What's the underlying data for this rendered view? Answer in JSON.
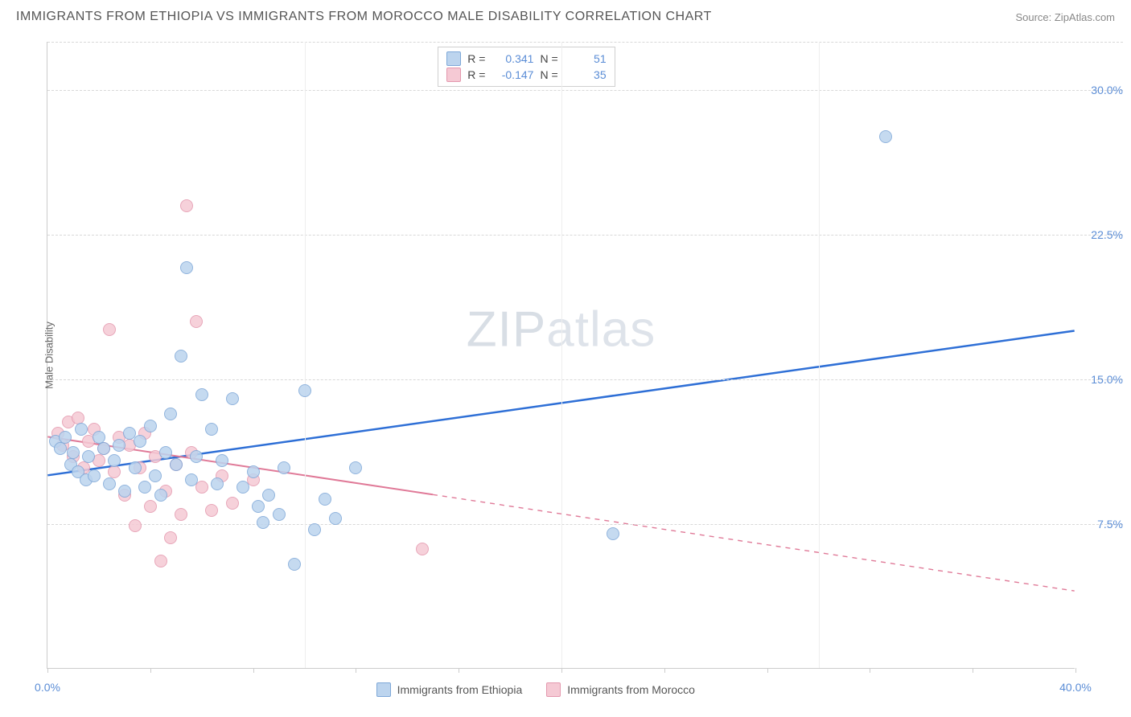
{
  "header": {
    "title": "IMMIGRANTS FROM ETHIOPIA VS IMMIGRANTS FROM MOROCCO MALE DISABILITY CORRELATION CHART",
    "source": "Source: ZipAtlas.com"
  },
  "chart": {
    "type": "scatter",
    "background_color": "#ffffff",
    "grid_color": "#d8d8d8",
    "axis_color": "#cccccc",
    "y_axis_label": "Male Disability",
    "watermark": "ZIPatlas",
    "xlim": [
      0,
      40
    ],
    "ylim": [
      0,
      32.5
    ],
    "xticks": [
      0,
      10,
      20,
      30,
      40
    ],
    "xtick_labels": [
      "0.0%",
      "",
      "",
      "",
      "40.0%"
    ],
    "xtick_minor": [
      0,
      4,
      8,
      12,
      16,
      20,
      24,
      28,
      32,
      36,
      40
    ],
    "yticks": [
      7.5,
      15.0,
      22.5,
      30.0
    ],
    "ytick_labels": [
      "7.5%",
      "15.0%",
      "22.5%",
      "30.0%"
    ],
    "tick_label_color": "#5b8dd6",
    "tick_fontsize": 14,
    "label_fontsize": 13,
    "point_radius": 8,
    "point_border_width": 1.5,
    "series": [
      {
        "name": "Immigrants from Ethiopia",
        "fill": "#bcd4ee",
        "stroke": "#7ea8d8",
        "points": [
          [
            0.3,
            11.8
          ],
          [
            0.5,
            11.4
          ],
          [
            0.7,
            12.0
          ],
          [
            0.9,
            10.6
          ],
          [
            1.0,
            11.2
          ],
          [
            1.2,
            10.2
          ],
          [
            1.3,
            12.4
          ],
          [
            1.5,
            9.8
          ],
          [
            1.6,
            11.0
          ],
          [
            1.8,
            10.0
          ],
          [
            2.0,
            12.0
          ],
          [
            2.2,
            11.4
          ],
          [
            2.4,
            9.6
          ],
          [
            2.6,
            10.8
          ],
          [
            2.8,
            11.6
          ],
          [
            3.0,
            9.2
          ],
          [
            3.2,
            12.2
          ],
          [
            3.4,
            10.4
          ],
          [
            3.6,
            11.8
          ],
          [
            3.8,
            9.4
          ],
          [
            4.0,
            12.6
          ],
          [
            4.2,
            10.0
          ],
          [
            4.4,
            9.0
          ],
          [
            4.6,
            11.2
          ],
          [
            4.8,
            13.2
          ],
          [
            5.0,
            10.6
          ],
          [
            5.2,
            16.2
          ],
          [
            5.4,
            20.8
          ],
          [
            5.6,
            9.8
          ],
          [
            5.8,
            11.0
          ],
          [
            6.0,
            14.2
          ],
          [
            6.4,
            12.4
          ],
          [
            6.6,
            9.6
          ],
          [
            6.8,
            10.8
          ],
          [
            7.2,
            14.0
          ],
          [
            7.6,
            9.4
          ],
          [
            8.0,
            10.2
          ],
          [
            8.2,
            8.4
          ],
          [
            8.4,
            7.6
          ],
          [
            8.6,
            9.0
          ],
          [
            9.0,
            8.0
          ],
          [
            9.2,
            10.4
          ],
          [
            9.6,
            5.4
          ],
          [
            10.0,
            14.4
          ],
          [
            10.4,
            7.2
          ],
          [
            10.8,
            8.8
          ],
          [
            11.2,
            7.8
          ],
          [
            12.0,
            10.4
          ],
          [
            22.0,
            7.0
          ],
          [
            32.6,
            27.6
          ]
        ],
        "trend": {
          "color": "#2e6fd6",
          "width": 2.5,
          "x1": 0,
          "y1": 10.0,
          "x2": 40,
          "y2": 17.5,
          "solid_until": 40
        }
      },
      {
        "name": "Immigrants from Morocco",
        "fill": "#f5c9d4",
        "stroke": "#e498ae",
        "points": [
          [
            0.4,
            12.2
          ],
          [
            0.6,
            11.6
          ],
          [
            0.8,
            12.8
          ],
          [
            1.0,
            11.0
          ],
          [
            1.2,
            13.0
          ],
          [
            1.4,
            10.4
          ],
          [
            1.6,
            11.8
          ],
          [
            1.8,
            12.4
          ],
          [
            2.0,
            10.8
          ],
          [
            2.2,
            11.4
          ],
          [
            2.4,
            17.6
          ],
          [
            2.6,
            10.2
          ],
          [
            2.8,
            12.0
          ],
          [
            3.0,
            9.0
          ],
          [
            3.2,
            11.6
          ],
          [
            3.4,
            7.4
          ],
          [
            3.6,
            10.4
          ],
          [
            3.8,
            12.2
          ],
          [
            4.0,
            8.4
          ],
          [
            4.2,
            11.0
          ],
          [
            4.4,
            5.6
          ],
          [
            4.6,
            9.2
          ],
          [
            4.8,
            6.8
          ],
          [
            5.0,
            10.6
          ],
          [
            5.2,
            8.0
          ],
          [
            5.4,
            24.0
          ],
          [
            5.6,
            11.2
          ],
          [
            5.8,
            18.0
          ],
          [
            6.0,
            9.4
          ],
          [
            6.4,
            8.2
          ],
          [
            6.8,
            10.0
          ],
          [
            7.2,
            8.6
          ],
          [
            8.0,
            9.8
          ],
          [
            14.6,
            6.2
          ]
        ],
        "trend": {
          "color": "#e07a98",
          "width": 2,
          "x1": 0,
          "y1": 12.0,
          "x2": 40,
          "y2": 4.0,
          "solid_until": 15
        }
      }
    ],
    "legend_top": {
      "border_color": "#d0d0d0",
      "rows": [
        {
          "swatch_fill": "#bcd4ee",
          "swatch_stroke": "#7ea8d8",
          "r_label": "R =",
          "r_value": "0.341",
          "n_label": "N =",
          "n_value": "51"
        },
        {
          "swatch_fill": "#f5c9d4",
          "swatch_stroke": "#e498ae",
          "r_label": "R =",
          "r_value": "-0.147",
          "n_label": "N =",
          "n_value": "35"
        }
      ]
    },
    "legend_bottom": [
      {
        "swatch_fill": "#bcd4ee",
        "swatch_stroke": "#7ea8d8",
        "label": "Immigrants from Ethiopia"
      },
      {
        "swatch_fill": "#f5c9d4",
        "swatch_stroke": "#e498ae",
        "label": "Immigrants from Morocco"
      }
    ]
  }
}
